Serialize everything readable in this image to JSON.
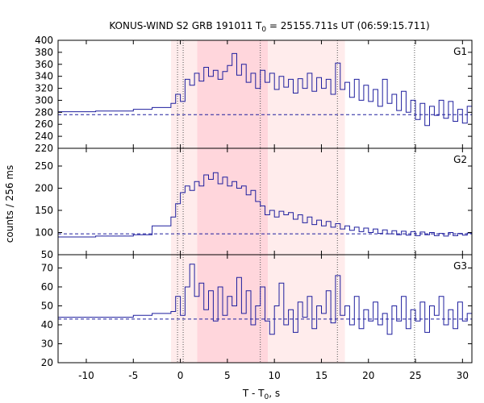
{
  "chart_data": {
    "type": "line",
    "title": "KONUS-WIND S2 GRB 191011 T",
    "title_sub": "0",
    "title_rest": " = 25155.711s UT (06:59:15.711)",
    "xlabel": "T - T",
    "xlabel_sub": "0",
    "xlabel_rest": ", s",
    "ylabel": "counts / 256 ms",
    "xlim": [
      -13,
      31
    ],
    "xticks": [
      -10,
      -5,
      0,
      5,
      10,
      15,
      20,
      25,
      30
    ],
    "grid": false,
    "line_color": "#1f1f9e",
    "background_bands": [
      {
        "x0": -1.0,
        "x1": 17.5,
        "color": "#ffecec"
      },
      {
        "x0": 1.8,
        "x1": 9.3,
        "color": "#ffd6dc"
      }
    ],
    "vertical_markers": [
      -0.3,
      0.3,
      8.5,
      16.7,
      24.9
    ],
    "panels": [
      {
        "label": "G1",
        "ylim": [
          220,
          400
        ],
        "yticks": [
          220,
          240,
          260,
          280,
          300,
          320,
          340,
          360,
          380,
          400
        ],
        "background": 276,
        "series": [
          {
            "x": -13,
            "y": 281
          },
          {
            "x": -9,
            "y": 282
          },
          {
            "x": -5,
            "y": 285
          },
          {
            "x": -3,
            "y": 288
          },
          {
            "x": -1,
            "y": 295
          },
          {
            "x": -0.5,
            "y": 310
          },
          {
            "x": 0,
            "y": 298
          },
          {
            "x": 0.5,
            "y": 335
          },
          {
            "x": 1.0,
            "y": 325
          },
          {
            "x": 1.5,
            "y": 345
          },
          {
            "x": 2.0,
            "y": 332
          },
          {
            "x": 2.5,
            "y": 355
          },
          {
            "x": 3.0,
            "y": 340
          },
          {
            "x": 3.5,
            "y": 350
          },
          {
            "x": 4.0,
            "y": 335
          },
          {
            "x": 4.5,
            "y": 348
          },
          {
            "x": 5.0,
            "y": 358
          },
          {
            "x": 5.5,
            "y": 378
          },
          {
            "x": 6.0,
            "y": 342
          },
          {
            "x": 6.5,
            "y": 360
          },
          {
            "x": 7.0,
            "y": 330
          },
          {
            "x": 7.5,
            "y": 345
          },
          {
            "x": 8.0,
            "y": 320
          },
          {
            "x": 8.5,
            "y": 350
          },
          {
            "x": 9.0,
            "y": 330
          },
          {
            "x": 9.5,
            "y": 345
          },
          {
            "x": 10.0,
            "y": 318
          },
          {
            "x": 10.5,
            "y": 340
          },
          {
            "x": 11.0,
            "y": 322
          },
          {
            "x": 11.5,
            "y": 335
          },
          {
            "x": 12.0,
            "y": 312
          },
          {
            "x": 12.5,
            "y": 336
          },
          {
            "x": 13.0,
            "y": 320
          },
          {
            "x": 13.5,
            "y": 345
          },
          {
            "x": 14.0,
            "y": 315
          },
          {
            "x": 14.5,
            "y": 338
          },
          {
            "x": 15.0,
            "y": 320
          },
          {
            "x": 15.5,
            "y": 335
          },
          {
            "x": 16.0,
            "y": 310
          },
          {
            "x": 16.5,
            "y": 362
          },
          {
            "x": 17.0,
            "y": 318
          },
          {
            "x": 17.5,
            "y": 330
          },
          {
            "x": 18.0,
            "y": 305
          },
          {
            "x": 18.5,
            "y": 335
          },
          {
            "x": 19.0,
            "y": 300
          },
          {
            "x": 19.5,
            "y": 325
          },
          {
            "x": 20.0,
            "y": 298
          },
          {
            "x": 20.5,
            "y": 318
          },
          {
            "x": 21.0,
            "y": 290
          },
          {
            "x": 21.5,
            "y": 335
          },
          {
            "x": 22.0,
            "y": 295
          },
          {
            "x": 22.5,
            "y": 310
          },
          {
            "x": 23.0,
            "y": 283
          },
          {
            "x": 23.5,
            "y": 315
          },
          {
            "x": 24.0,
            "y": 280
          },
          {
            "x": 24.5,
            "y": 300
          },
          {
            "x": 25.0,
            "y": 268
          },
          {
            "x": 25.5,
            "y": 295
          },
          {
            "x": 26.0,
            "y": 258
          },
          {
            "x": 26.5,
            "y": 290
          },
          {
            "x": 27.0,
            "y": 275
          },
          {
            "x": 27.5,
            "y": 300
          },
          {
            "x": 28.0,
            "y": 270
          },
          {
            "x": 28.5,
            "y": 298
          },
          {
            "x": 29.0,
            "y": 265
          },
          {
            "x": 29.5,
            "y": 285
          },
          {
            "x": 30.0,
            "y": 262
          },
          {
            "x": 30.5,
            "y": 290
          },
          {
            "x": 31,
            "y": 278
          }
        ]
      },
      {
        "label": "G2",
        "ylim": [
          50,
          290
        ],
        "yticks": [
          50,
          100,
          150,
          200,
          250
        ],
        "background": 97,
        "series": [
          {
            "x": -13,
            "y": 90
          },
          {
            "x": -9,
            "y": 92
          },
          {
            "x": -5,
            "y": 95
          },
          {
            "x": -3,
            "y": 115
          },
          {
            "x": -1,
            "y": 135
          },
          {
            "x": -0.5,
            "y": 165
          },
          {
            "x": 0,
            "y": 190
          },
          {
            "x": 0.5,
            "y": 205
          },
          {
            "x": 1.0,
            "y": 195
          },
          {
            "x": 1.5,
            "y": 215
          },
          {
            "x": 2.0,
            "y": 205
          },
          {
            "x": 2.5,
            "y": 230
          },
          {
            "x": 3.0,
            "y": 220
          },
          {
            "x": 3.5,
            "y": 235
          },
          {
            "x": 4.0,
            "y": 210
          },
          {
            "x": 4.5,
            "y": 225
          },
          {
            "x": 5.0,
            "y": 205
          },
          {
            "x": 5.5,
            "y": 215
          },
          {
            "x": 6.0,
            "y": 200
          },
          {
            "x": 6.5,
            "y": 205
          },
          {
            "x": 7.0,
            "y": 185
          },
          {
            "x": 7.5,
            "y": 195
          },
          {
            "x": 8.0,
            "y": 170
          },
          {
            "x": 8.5,
            "y": 160
          },
          {
            "x": 9.0,
            "y": 140
          },
          {
            "x": 9.5,
            "y": 150
          },
          {
            "x": 10.0,
            "y": 135
          },
          {
            "x": 10.5,
            "y": 148
          },
          {
            "x": 11.0,
            "y": 140
          },
          {
            "x": 11.5,
            "y": 145
          },
          {
            "x": 12.0,
            "y": 130
          },
          {
            "x": 12.5,
            "y": 140
          },
          {
            "x": 13.0,
            "y": 122
          },
          {
            "x": 13.5,
            "y": 135
          },
          {
            "x": 14.0,
            "y": 118
          },
          {
            "x": 14.5,
            "y": 128
          },
          {
            "x": 15.0,
            "y": 115
          },
          {
            "x": 15.5,
            "y": 125
          },
          {
            "x": 16.0,
            "y": 112
          },
          {
            "x": 16.5,
            "y": 120
          },
          {
            "x": 17.0,
            "y": 108
          },
          {
            "x": 17.5,
            "y": 115
          },
          {
            "x": 18.0,
            "y": 105
          },
          {
            "x": 18.5,
            "y": 112
          },
          {
            "x": 19.0,
            "y": 102
          },
          {
            "x": 19.5,
            "y": 110
          },
          {
            "x": 20.0,
            "y": 100
          },
          {
            "x": 20.5,
            "y": 108
          },
          {
            "x": 21.0,
            "y": 98
          },
          {
            "x": 21.5,
            "y": 106
          },
          {
            "x": 22.0,
            "y": 97
          },
          {
            "x": 22.5,
            "y": 104
          },
          {
            "x": 23.0,
            "y": 95
          },
          {
            "x": 23.5,
            "y": 103
          },
          {
            "x": 24.0,
            "y": 94
          },
          {
            "x": 24.5,
            "y": 102
          },
          {
            "x": 25.0,
            "y": 93
          },
          {
            "x": 25.5,
            "y": 101
          },
          {
            "x": 26.0,
            "y": 95
          },
          {
            "x": 26.5,
            "y": 100
          },
          {
            "x": 27.0,
            "y": 93
          },
          {
            "x": 27.5,
            "y": 98
          },
          {
            "x": 28.0,
            "y": 92
          },
          {
            "x": 28.5,
            "y": 100
          },
          {
            "x": 29.0,
            "y": 93
          },
          {
            "x": 29.5,
            "y": 98
          },
          {
            "x": 30.0,
            "y": 94
          },
          {
            "x": 30.5,
            "y": 99
          },
          {
            "x": 31,
            "y": 96
          }
        ]
      },
      {
        "label": "G3",
        "ylim": [
          20,
          77
        ],
        "yticks": [
          20,
          30,
          40,
          50,
          60,
          70
        ],
        "background": 43,
        "series": [
          {
            "x": -13,
            "y": 44
          },
          {
            "x": -9,
            "y": 44
          },
          {
            "x": -5,
            "y": 45
          },
          {
            "x": -3,
            "y": 46
          },
          {
            "x": -1,
            "y": 47
          },
          {
            "x": -0.5,
            "y": 55
          },
          {
            "x": 0,
            "y": 45
          },
          {
            "x": 0.5,
            "y": 60
          },
          {
            "x": 1.0,
            "y": 72
          },
          {
            "x": 1.5,
            "y": 55
          },
          {
            "x": 2.0,
            "y": 62
          },
          {
            "x": 2.5,
            "y": 48
          },
          {
            "x": 3.0,
            "y": 58
          },
          {
            "x": 3.5,
            "y": 42
          },
          {
            "x": 4.0,
            "y": 60
          },
          {
            "x": 4.5,
            "y": 45
          },
          {
            "x": 5.0,
            "y": 55
          },
          {
            "x": 5.5,
            "y": 50
          },
          {
            "x": 6.0,
            "y": 65
          },
          {
            "x": 6.5,
            "y": 46
          },
          {
            "x": 7.0,
            "y": 58
          },
          {
            "x": 7.5,
            "y": 40
          },
          {
            "x": 8.0,
            "y": 50
          },
          {
            "x": 8.5,
            "y": 60
          },
          {
            "x": 9.0,
            "y": 42
          },
          {
            "x": 9.5,
            "y": 35
          },
          {
            "x": 10.0,
            "y": 50
          },
          {
            "x": 10.5,
            "y": 62
          },
          {
            "x": 11.0,
            "y": 40
          },
          {
            "x": 11.5,
            "y": 48
          },
          {
            "x": 12.0,
            "y": 36
          },
          {
            "x": 12.5,
            "y": 52
          },
          {
            "x": 13.0,
            "y": 44
          },
          {
            "x": 13.5,
            "y": 55
          },
          {
            "x": 14.0,
            "y": 38
          },
          {
            "x": 14.5,
            "y": 50
          },
          {
            "x": 15.0,
            "y": 46
          },
          {
            "x": 15.5,
            "y": 58
          },
          {
            "x": 16.0,
            "y": 41
          },
          {
            "x": 16.5,
            "y": 66
          },
          {
            "x": 17.0,
            "y": 45
          },
          {
            "x": 17.5,
            "y": 50
          },
          {
            "x": 18.0,
            "y": 40
          },
          {
            "x": 18.5,
            "y": 55
          },
          {
            "x": 19.0,
            "y": 38
          },
          {
            "x": 19.5,
            "y": 48
          },
          {
            "x": 20.0,
            "y": 42
          },
          {
            "x": 20.5,
            "y": 52
          },
          {
            "x": 21.0,
            "y": 40
          },
          {
            "x": 21.5,
            "y": 46
          },
          {
            "x": 22.0,
            "y": 35
          },
          {
            "x": 22.5,
            "y": 50
          },
          {
            "x": 23.0,
            "y": 42
          },
          {
            "x": 23.5,
            "y": 55
          },
          {
            "x": 24.0,
            "y": 38
          },
          {
            "x": 24.5,
            "y": 48
          },
          {
            "x": 25.0,
            "y": 42
          },
          {
            "x": 25.5,
            "y": 52
          },
          {
            "x": 26.0,
            "y": 36
          },
          {
            "x": 26.5,
            "y": 50
          },
          {
            "x": 27.0,
            "y": 45
          },
          {
            "x": 27.5,
            "y": 55
          },
          {
            "x": 28.0,
            "y": 40
          },
          {
            "x": 28.5,
            "y": 48
          },
          {
            "x": 29.0,
            "y": 38
          },
          {
            "x": 29.5,
            "y": 52
          },
          {
            "x": 30.0,
            "y": 42
          },
          {
            "x": 30.5,
            "y": 46
          },
          {
            "x": 31,
            "y": 44
          }
        ]
      }
    ]
  }
}
